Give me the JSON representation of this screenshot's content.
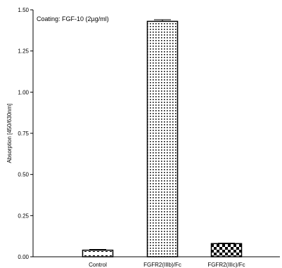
{
  "chart_data": {
    "type": "bar",
    "annotation": "Coating: FGF-10 (2µg/ml)",
    "title": "",
    "xlabel": "",
    "ylabel": "Absorption [450/630nm]",
    "ylim": [
      0,
      1.5
    ],
    "yticks": [
      "0.00",
      "0.25",
      "0.50",
      "0.75",
      "1.00",
      "1.25",
      "1.50"
    ],
    "grid": false,
    "categories": [
      "Control",
      "FGFR2(IIIb)/Fc",
      "FGFR2(IIIc)/Fc"
    ],
    "values": [
      0.04,
      1.43,
      0.08
    ],
    "errors": [
      0.005,
      0.01,
      0.003
    ],
    "patterns": [
      "lines",
      "dots",
      "checker"
    ]
  }
}
